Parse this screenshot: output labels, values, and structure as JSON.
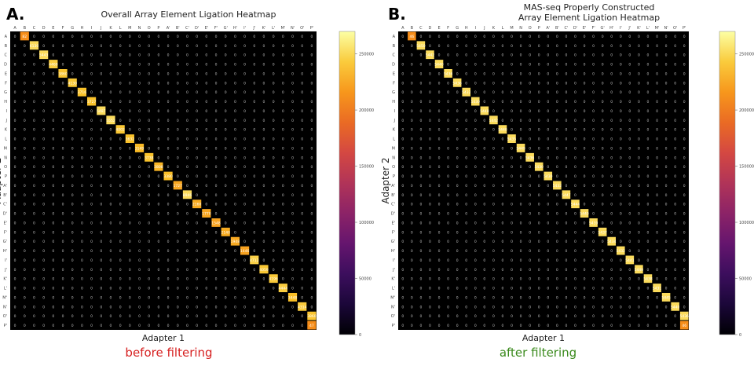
{
  "figure": {
    "colors": {
      "cell_bg": "#000000",
      "label_color": "#222222"
    }
  },
  "panels": [
    {
      "letter": "A.",
      "title": "Overall Array Element Ligation Heatmap",
      "caption": "before filtering",
      "caption_color": "#d61f1f"
    },
    {
      "letter": "B.",
      "title": "MAS-seq Properly Constructed\nArray Element Ligation Heatmap",
      "caption": "after filtering",
      "caption_color": "#3a8a1c"
    }
  ],
  "chart_data": [
    {
      "type": "heatmap",
      "title": "Overall Array Element Ligation Heatmap",
      "xlabel": "Adapter 1",
      "ylabel": "Adapter 2",
      "labels": [
        "A",
        "B",
        "C",
        "D",
        "E",
        "F",
        "G",
        "H",
        "I",
        "J",
        "K",
        "L",
        "M",
        "N",
        "O",
        "P",
        "A'",
        "B'",
        "C'",
        "D'",
        "E'",
        "F'",
        "G'",
        "H'",
        "I'",
        "J'",
        "K'",
        "L'",
        "M'",
        "N'",
        "O'",
        "P'"
      ],
      "diagonal_offset": 1,
      "diagonal_values": [
        82,
        6130,
        5443,
        4469,
        3860,
        4130,
        3716,
        3727,
        5487,
        5552,
        4002,
        3632,
        3149,
        3738,
        2808,
        3380,
        1727,
        8946,
        2160,
        1770,
        1548,
        2140,
        1948,
        1446,
        4712,
        4059,
        4196,
        4444,
        3448,
        4314,
        3860,
        47
      ],
      "note_first_row": [
        0,
        1,
        3,
        2,
        3,
        3,
        9,
        1,
        1,
        2,
        4,
        6,
        6,
        8,
        82,
        1
      ],
      "colorbar": {
        "min": 0,
        "max": 270000,
        "ticks": [
          0,
          50000,
          100000,
          150000,
          200000,
          250000
        ],
        "colormap": "inferno"
      }
    },
    {
      "type": "heatmap",
      "title": "MAS-seq Properly Constructed Array Element Ligation Heatmap",
      "xlabel": "Adapter 1",
      "ylabel": "Adapter 2",
      "labels": [
        "A",
        "B",
        "C",
        "D",
        "E",
        "F",
        "G",
        "H",
        "I",
        "J",
        "K",
        "L",
        "M",
        "N",
        "O",
        "P",
        "A'",
        "B'",
        "C'",
        "D'",
        "E'",
        "F'",
        "G'",
        "H'",
        "I'",
        "J'",
        "K'",
        "L'",
        "M'",
        "N'",
        "O'",
        "P'"
      ],
      "diagonal_offset": 1,
      "diagonal_values": [
        46,
        5450,
        5442,
        5440,
        5436,
        5436,
        5432,
        5430,
        5448,
        5442,
        5440,
        5435,
        5449,
        5436,
        5430,
        5430,
        5432,
        5447,
        5444,
        5440,
        5439,
        5437,
        5434,
        5432,
        5441,
        5440,
        5438,
        5431,
        5445,
        5440,
        5436,
        46
      ],
      "colorbar": {
        "min": 0,
        "max": 270000,
        "ticks": [
          0,
          50000,
          100000,
          150000,
          200000,
          250000
        ],
        "colormap": "inferno"
      }
    }
  ]
}
